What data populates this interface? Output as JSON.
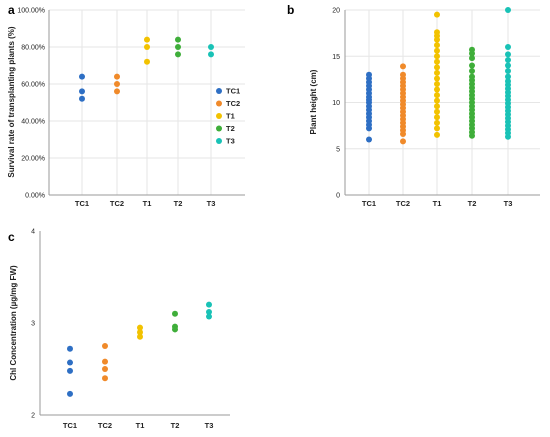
{
  "colors": {
    "TC1": "#2e6fc4",
    "TC2": "#f08a2a",
    "T1": "#f2c200",
    "T2": "#3fae3a",
    "T3": "#19c2b6"
  },
  "legend": {
    "placement": "right",
    "entries": [
      "TC1",
      "TC2",
      "T1",
      "T2",
      "T3"
    ]
  },
  "chart_data": [
    {
      "type": "scatter",
      "panel": "a",
      "ylabel": "Survival rate of transplanting plants (%)",
      "xlabel": "",
      "categories": [
        "TC1",
        "TC2",
        "T1",
        "T2",
        "T3"
      ],
      "ylim": [
        0,
        100
      ],
      "yticks": [
        0,
        20,
        40,
        60,
        80,
        100
      ],
      "ytick_labels": [
        "0.00%",
        "20.00%",
        "40.00%",
        "60.00%",
        "80.00%",
        "100.00%"
      ],
      "grid": true,
      "series": [
        {
          "name": "TC1",
          "values": [
            64,
            56,
            52
          ]
        },
        {
          "name": "TC2",
          "values": [
            64,
            60,
            56
          ]
        },
        {
          "name": "T1",
          "values": [
            84,
            80,
            72
          ]
        },
        {
          "name": "T2",
          "values": [
            84,
            80,
            76
          ]
        },
        {
          "name": "T3",
          "values": [
            80,
            76
          ]
        }
      ]
    },
    {
      "type": "scatter",
      "panel": "b",
      "ylabel": "Plant height (cm)",
      "xlabel": "",
      "categories": [
        "TC1",
        "TC2",
        "T1",
        "T2",
        "T3"
      ],
      "ylim": [
        0,
        20
      ],
      "yticks": [
        0,
        5,
        10,
        15,
        20
      ],
      "ytick_labels": [
        "0",
        "5",
        "10",
        "15",
        "20"
      ],
      "grid": true,
      "series": [
        {
          "name": "TC1",
          "values": [
            6.0,
            7.2,
            7.6,
            8.0,
            8.4,
            8.8,
            9.2,
            9.6,
            10.0,
            10.3,
            10.6,
            11.0,
            11.4,
            11.8,
            12.2,
            12.6,
            13.0
          ]
        },
        {
          "name": "TC2",
          "values": [
            5.8,
            6.6,
            7.0,
            7.4,
            7.8,
            8.2,
            8.6,
            9.0,
            9.4,
            9.8,
            10.2,
            10.6,
            11.0,
            11.4,
            11.8,
            12.2,
            12.6,
            13.0,
            13.9
          ]
        },
        {
          "name": "T1",
          "values": [
            6.5,
            7.2,
            7.8,
            8.4,
            9.0,
            9.6,
            10.2,
            10.8,
            11.4,
            12.0,
            12.6,
            13.2,
            13.8,
            14.4,
            15.0,
            15.6,
            16.2,
            16.8,
            17.2,
            17.6,
            19.5
          ]
        },
        {
          "name": "T2",
          "values": [
            6.4,
            6.8,
            7.2,
            7.6,
            8.0,
            8.4,
            8.8,
            9.2,
            9.6,
            10.0,
            10.4,
            10.8,
            11.2,
            11.6,
            12.0,
            12.4,
            12.8,
            13.4,
            14.0,
            14.8,
            15.3,
            15.7
          ]
        },
        {
          "name": "T3",
          "values": [
            6.3,
            6.7,
            7.1,
            7.5,
            7.9,
            8.3,
            8.7,
            9.1,
            9.5,
            9.9,
            10.3,
            10.7,
            11.1,
            11.5,
            11.9,
            12.3,
            12.8,
            13.4,
            14.0,
            14.6,
            15.2,
            16.0,
            20.0
          ]
        }
      ]
    },
    {
      "type": "scatter",
      "panel": "c",
      "ylabel": "Chl Concentration (µg/mg FW)",
      "xlabel": "",
      "categories": [
        "TC1",
        "TC2",
        "T1",
        "T2",
        "T3"
      ],
      "ylim": [
        2,
        4
      ],
      "yticks": [
        2,
        3,
        4
      ],
      "ytick_labels": [
        "2",
        "3",
        "4"
      ],
      "grid": false,
      "series": [
        {
          "name": "TC1",
          "values": [
            2.72,
            2.57,
            2.48,
            2.23
          ]
        },
        {
          "name": "TC2",
          "values": [
            2.75,
            2.58,
            2.5,
            2.4
          ]
        },
        {
          "name": "T1",
          "values": [
            2.95,
            2.9,
            2.85
          ]
        },
        {
          "name": "T2",
          "values": [
            3.1,
            2.96,
            2.93
          ]
        },
        {
          "name": "T3",
          "values": [
            3.2,
            3.12,
            3.07
          ]
        }
      ]
    }
  ]
}
